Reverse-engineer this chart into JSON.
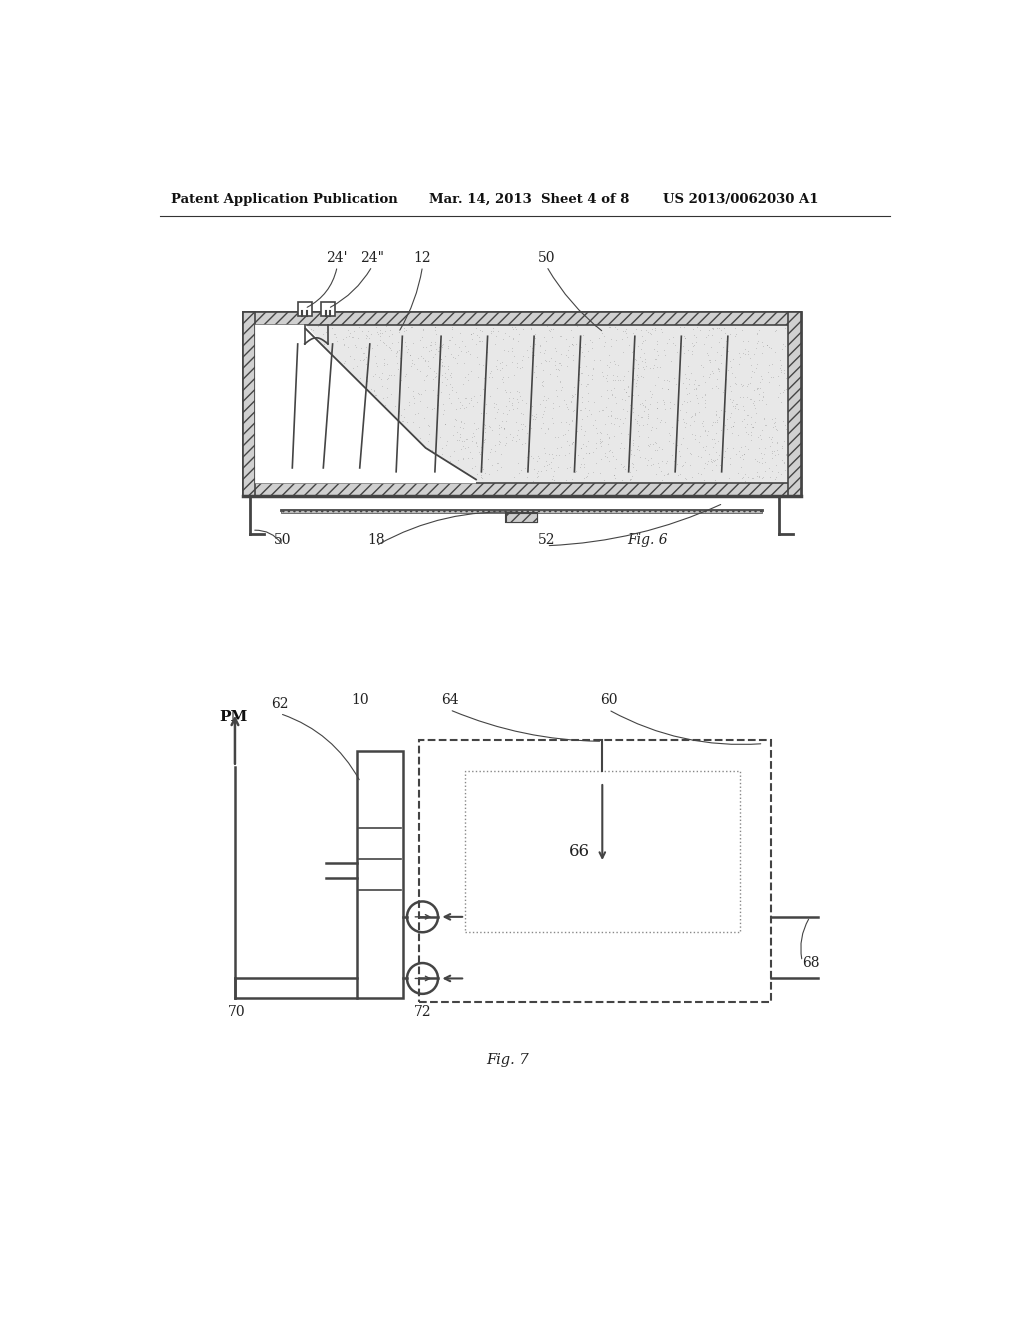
{
  "header_left": "Patent Application Publication",
  "header_center": "Mar. 14, 2013  Sheet 4 of 8",
  "header_right": "US 2013/0062030 A1",
  "fig6_title": "Fig. 6",
  "fig7_title": "Fig. 7",
  "bg": "#ffffff",
  "lc": "#444444",
  "lc_light": "#888888"
}
